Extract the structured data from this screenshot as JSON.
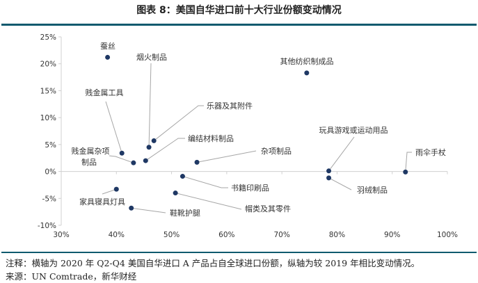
{
  "header": {
    "title": "图表 8：美国自华进口前十大行业份额变动情况"
  },
  "footer": {
    "note": "注释：横轴为 2020 年 Q2-Q4 美国自华进口 A 产品占自全球进口份额，纵轴为较 2019 年相比变动情况。",
    "source": "来源：UN Comtrade，新华财经"
  },
  "colors": {
    "accent": "#0f5a6e",
    "point": "#1f3864",
    "axis": "#d0d0d0",
    "leader": "#a6a6a6"
  },
  "chart_data": {
    "type": "scatter",
    "title": "美国自华进口前十大行业份额变动情况",
    "xlabel": "2020年Q2-Q4美国自华进口占自全球进口份额",
    "ylabel": "较2019年变动",
    "xlim": [
      30,
      100
    ],
    "ylim": [
      -10,
      25
    ],
    "xticks": [
      "30%",
      "40%",
      "50%",
      "60%",
      "70%",
      "80%",
      "90%",
      "100%"
    ],
    "yticks": [
      "25%",
      "20%",
      "15%",
      "10%",
      "5%",
      "0%",
      "-5%",
      "-10%"
    ],
    "grid": false,
    "points": [
      {
        "label": "蚕丝",
        "x": 38.4,
        "y": 21.2
      },
      {
        "label": "烟火制品",
        "x": 45.9,
        "y": 4.5
      },
      {
        "label": "贱金属工具",
        "x": 41.0,
        "y": 3.4
      },
      {
        "label": "乐器及其附件",
        "x": 46.8,
        "y": 5.7
      },
      {
        "label": "编结材料制品",
        "x": 45.3,
        "y": 2.0
      },
      {
        "label": "贱金属杂项制品",
        "label_lines": [
          "贱金属杂项",
          "制品"
        ],
        "x": 43.1,
        "y": 1.6
      },
      {
        "label": "杂项制品",
        "x": 54.6,
        "y": 1.7
      },
      {
        "label": "书籍印刷品",
        "x": 52.0,
        "y": -0.9
      },
      {
        "label": "家具寝具灯具",
        "x": 40.0,
        "y": -3.3
      },
      {
        "label": "帽类及其零件",
        "x": 50.7,
        "y": -4.0
      },
      {
        "label": "鞋靴护腿",
        "x": 42.7,
        "y": -6.8
      },
      {
        "label": "其他纺织制成品",
        "x": 74.5,
        "y": 18.3
      },
      {
        "label": "玩具游戏或运动用品",
        "x": 78.5,
        "y": 0.1
      },
      {
        "label": "羽绒制品",
        "x": 78.5,
        "y": -1.2
      },
      {
        "label": "雨伞手杖",
        "x": 92.4,
        "y": -0.1
      }
    ]
  }
}
